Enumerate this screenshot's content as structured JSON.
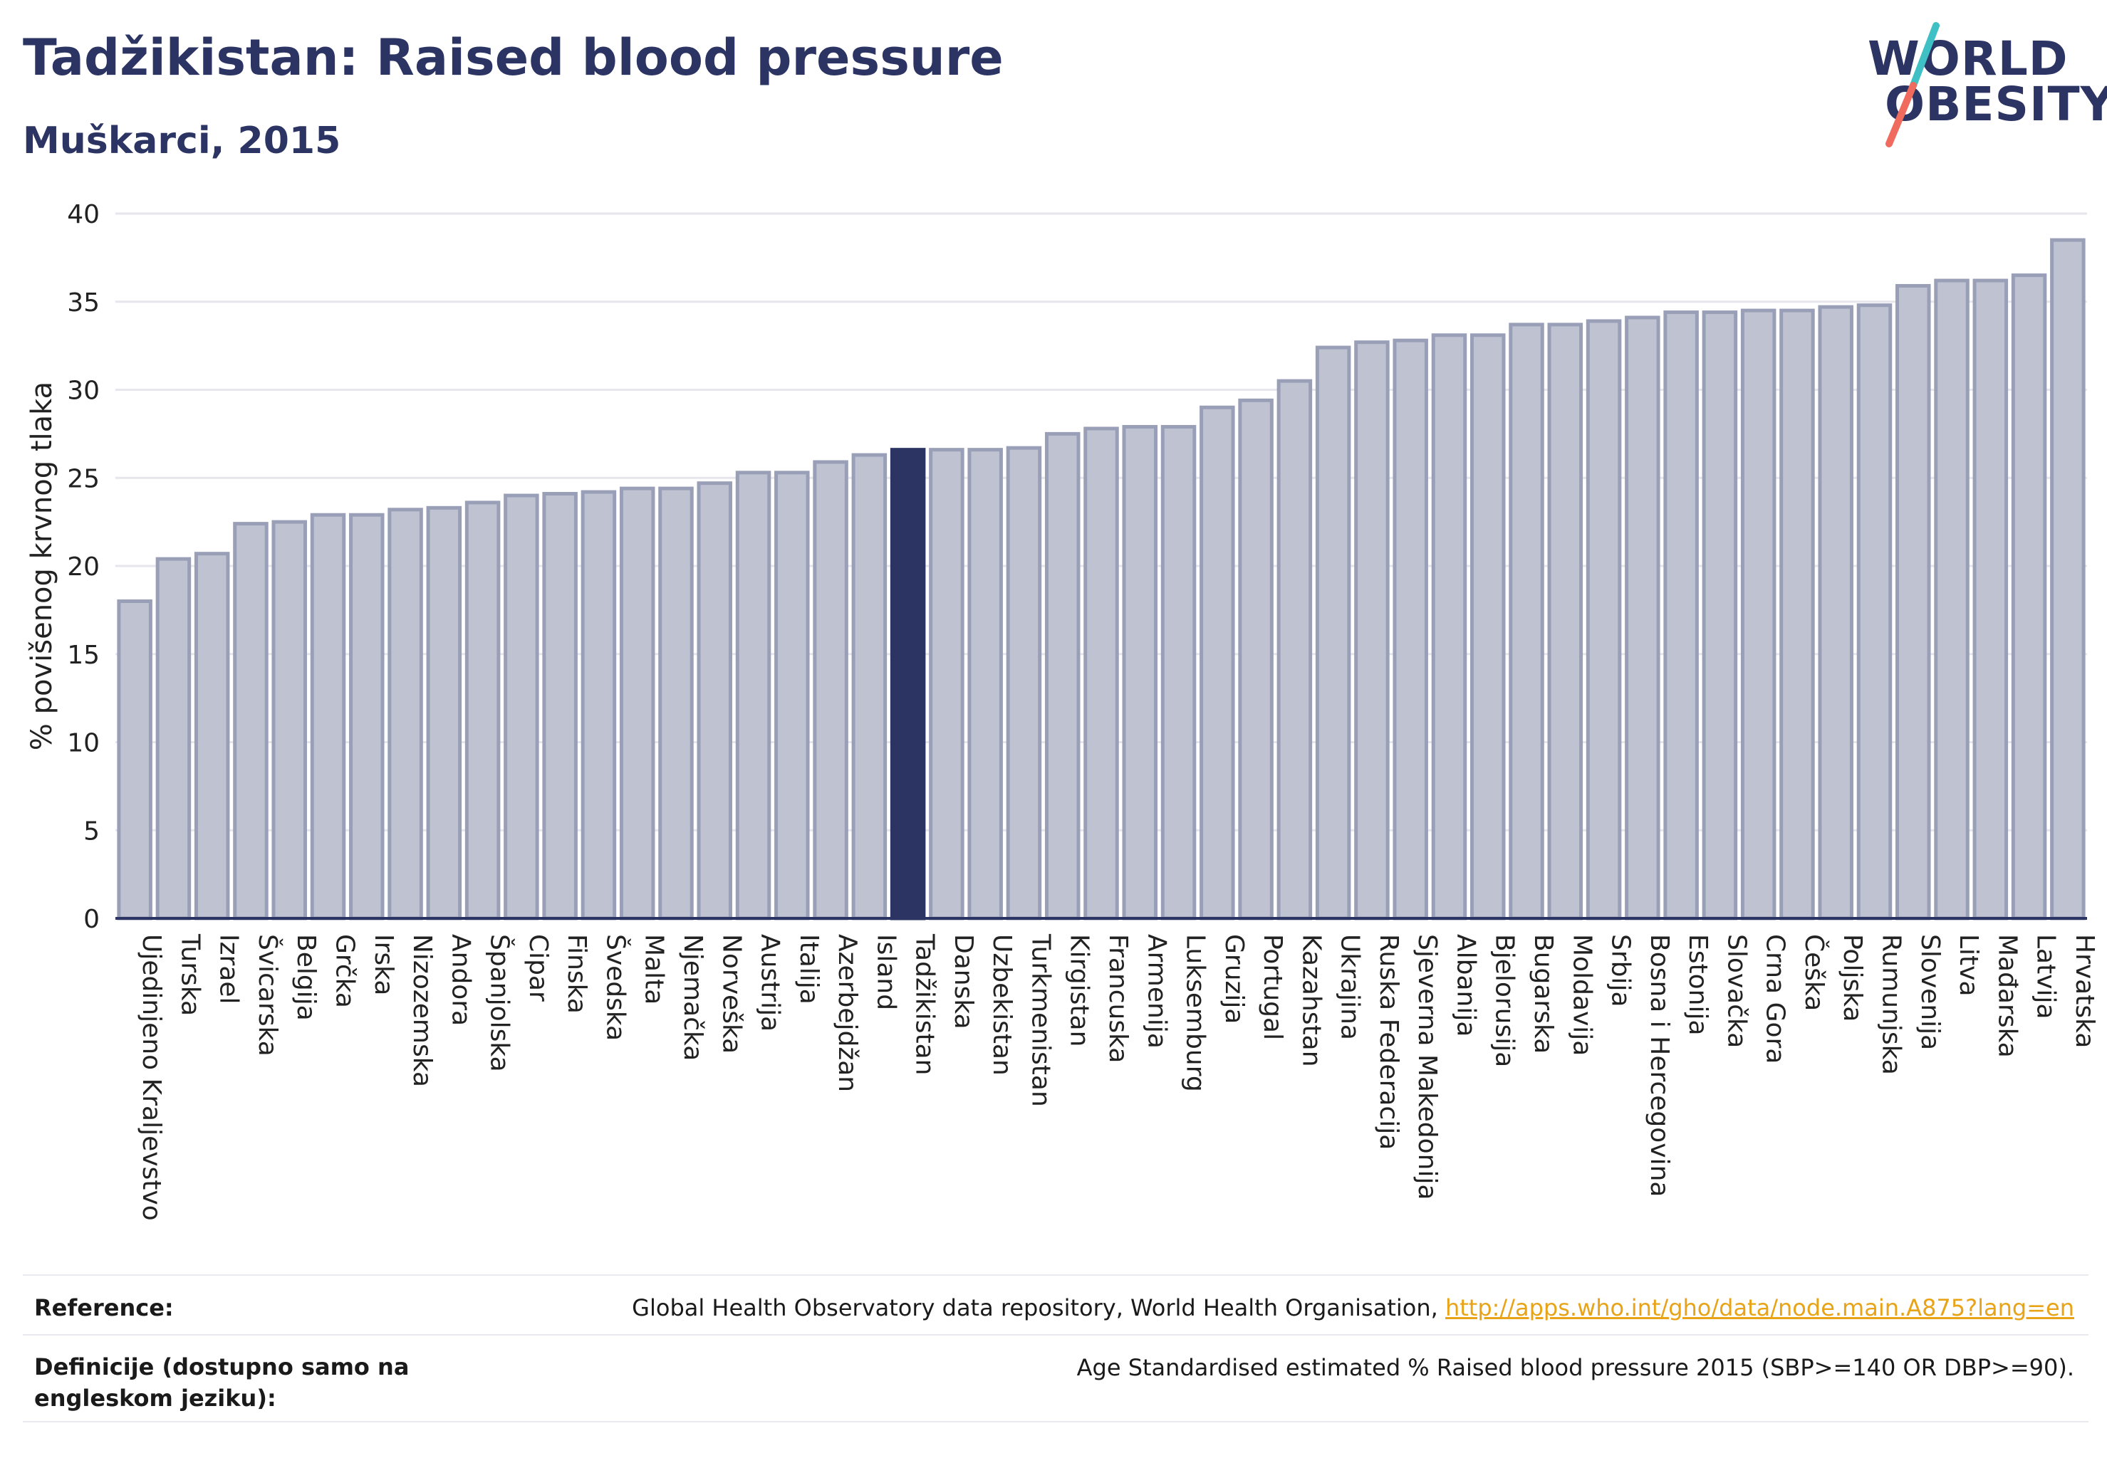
{
  "header": {
    "title": "Tadžikistan: Raised blood pressure",
    "subtitle": "Muškarci, 2015"
  },
  "logo": {
    "line1": "WORLD",
    "line2": "OBESITY"
  },
  "footer": {
    "reference_label": "Reference:",
    "reference_text": "Global Health Observatory data repository, World Health Organisation,",
    "reference_link": "http://apps.who.int/gho/data/node.main.A875?lang=en",
    "definition_label": "Definicije (dostupno samo na engleskom jeziku):",
    "definition_text": "Age Standardised estimated % Raised blood pressure 2015 (SBP>=140 OR DBP>=90)."
  },
  "colors": {
    "bar": "#bfc2d1",
    "bar_border": "#9a9fb8",
    "highlight": "#2b3462",
    "grid": "#e6e6ec",
    "text": "#2b3462",
    "logo_teal": "#3ec0c4",
    "logo_coral": "#f06b5d"
  },
  "chart_data": {
    "type": "bar",
    "title": "Tadžikistan: Raised blood pressure",
    "subtitle": "Muškarci, 2015",
    "xlabel": "",
    "ylabel": "% povišenog krvnog tlaka",
    "ylim": [
      0,
      40
    ],
    "yticks": [
      0,
      5,
      10,
      15,
      20,
      25,
      30,
      35,
      40
    ],
    "grid": true,
    "highlight": "Tadžikistan",
    "categories": [
      "Ujedinjeno Kraljevstvo",
      "Turska",
      "Izrael",
      "Švicarska",
      "Belgija",
      "Grčka",
      "Irska",
      "Nizozemska",
      "Andora",
      "Španjolska",
      "Cipar",
      "Finska",
      "Švedska",
      "Malta",
      "Njemačka",
      "Norveška",
      "Austrija",
      "Italija",
      "Azerbejdžan",
      "Island",
      "Tadžikistan",
      "Danska",
      "Uzbekistan",
      "Turkmenistan",
      "Kirgistan",
      "Francuska",
      "Armenija",
      "Luksemburg",
      "Gruzija",
      "Portugal",
      "Kazahstan",
      "Ukrajina",
      "Ruska Federacija",
      "Sjeverna Makedonija",
      "Albanija",
      "Bjelorusija",
      "Bugarska",
      "Moldavija",
      "Srbija",
      "Bosna i Hercegovina",
      "Estonija",
      "Slovačka",
      "Crna Gora",
      "Češka",
      "Poljska",
      "Rumunjska",
      "Slovenija",
      "Litva",
      "Mađarska",
      "Latvija",
      "Hrvatska"
    ],
    "values": [
      18.0,
      20.4,
      20.7,
      22.4,
      22.5,
      22.9,
      22.9,
      23.2,
      23.3,
      23.6,
      24.0,
      24.1,
      24.2,
      24.4,
      24.4,
      24.7,
      25.3,
      25.3,
      25.9,
      26.3,
      26.6,
      26.6,
      26.6,
      26.7,
      27.5,
      27.8,
      27.9,
      27.9,
      29.0,
      29.4,
      30.5,
      32.4,
      32.7,
      32.8,
      33.1,
      33.1,
      33.7,
      33.7,
      33.9,
      34.1,
      34.4,
      34.4,
      34.5,
      34.5,
      34.7,
      34.8,
      35.9,
      36.2,
      36.2,
      36.5,
      38.5
    ]
  }
}
